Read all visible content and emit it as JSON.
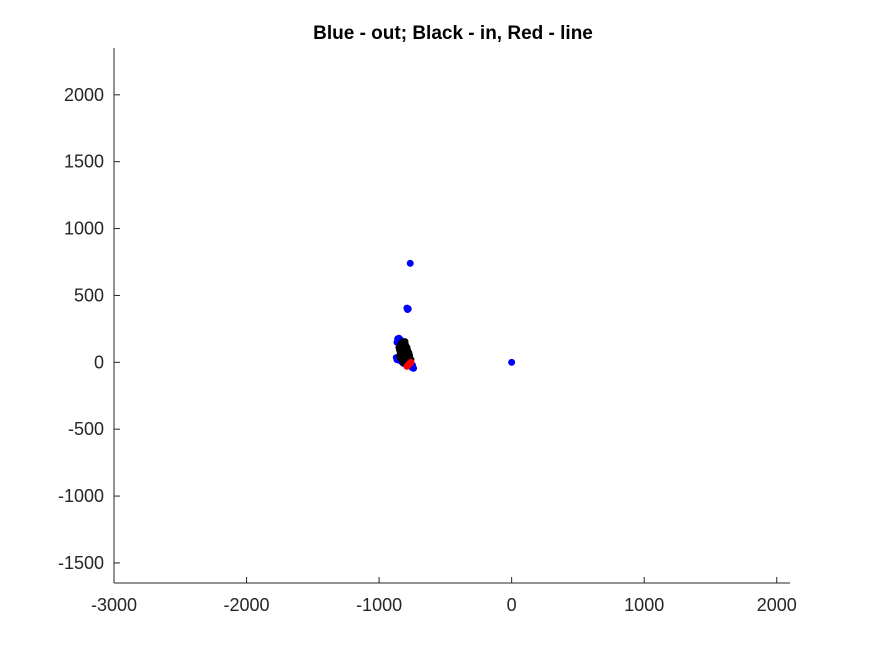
{
  "chart_data": {
    "type": "scatter",
    "title": "Blue - out; Black - in, Red - line",
    "xlabel": "",
    "ylabel": "",
    "xlim": [
      -3000,
      2100
    ],
    "ylim": [
      -1650,
      2350
    ],
    "x_ticks": [
      -3000,
      -2000,
      -1000,
      0,
      1000,
      2000
    ],
    "y_ticks": [
      -1500,
      -1000,
      -500,
      0,
      500,
      1000,
      1500,
      2000
    ],
    "x_tick_labels": [
      "-3000",
      "-2000",
      "-1000",
      "0",
      "1000",
      "2000"
    ],
    "y_tick_labels": [
      "-1500",
      "-1000",
      "-500",
      "0",
      "500",
      "1000",
      "1500",
      "2000"
    ],
    "grid": false,
    "series": [
      {
        "color": "#0000ff",
        "points": [
          [
            -765,
            740
          ],
          [
            -780,
            400
          ],
          [
            -785,
            395
          ],
          [
            -790,
            405
          ],
          [
            0,
            0
          ],
          [
            -860,
            175
          ],
          [
            -850,
            180
          ],
          [
            -840,
            170
          ],
          [
            -855,
            160
          ],
          [
            -865,
            150
          ],
          [
            -845,
            145
          ],
          [
            -870,
            35
          ],
          [
            -860,
            25
          ],
          [
            -855,
            40
          ],
          [
            -865,
            20
          ],
          [
            -850,
            15
          ],
          [
            -830,
            5
          ],
          [
            -820,
            -5
          ],
          [
            -810,
            -10
          ],
          [
            -800,
            -15
          ],
          [
            -795,
            -5
          ],
          [
            -780,
            -20
          ],
          [
            -770,
            -25
          ],
          [
            -760,
            -30
          ],
          [
            -750,
            -40
          ],
          [
            -745,
            -35
          ],
          [
            -740,
            -45
          ],
          [
            -755,
            -15
          ],
          [
            -765,
            -10
          ],
          [
            -748,
            -22
          ]
        ]
      },
      {
        "color": "#000000",
        "points": [
          [
            -840,
            130
          ],
          [
            -830,
            120
          ],
          [
            -820,
            110
          ],
          [
            -835,
            100
          ],
          [
            -825,
            90
          ],
          [
            -815,
            80
          ],
          [
            -810,
            120
          ],
          [
            -800,
            100
          ],
          [
            -805,
            70
          ],
          [
            -795,
            60
          ],
          [
            -820,
            60
          ],
          [
            -830,
            50
          ],
          [
            -840,
            70
          ],
          [
            -845,
            40
          ],
          [
            -835,
            30
          ],
          [
            -825,
            20
          ],
          [
            -815,
            30
          ],
          [
            -805,
            40
          ],
          [
            -795,
            50
          ],
          [
            -785,
            40
          ],
          [
            -790,
            20
          ],
          [
            -780,
            10
          ],
          [
            -800,
            0
          ],
          [
            -810,
            10
          ],
          [
            -820,
            0
          ],
          [
            -790,
            80
          ],
          [
            -785,
            90
          ],
          [
            -775,
            70
          ],
          [
            -770,
            50
          ],
          [
            -780,
            60
          ],
          [
            -815,
            140
          ],
          [
            -800,
            130
          ],
          [
            -790,
            110
          ],
          [
            -825,
            150
          ],
          [
            -805,
            155
          ],
          [
            -850,
            110
          ],
          [
            -845,
            90
          ],
          [
            -770,
            30
          ],
          [
            -760,
            20
          ],
          [
            -775,
            5
          ]
        ]
      },
      {
        "color": "#ff0000",
        "points": [
          [
            -790,
            -30
          ],
          [
            -780,
            -20
          ],
          [
            -770,
            -10
          ],
          [
            -760,
            0
          ]
        ]
      }
    ]
  }
}
